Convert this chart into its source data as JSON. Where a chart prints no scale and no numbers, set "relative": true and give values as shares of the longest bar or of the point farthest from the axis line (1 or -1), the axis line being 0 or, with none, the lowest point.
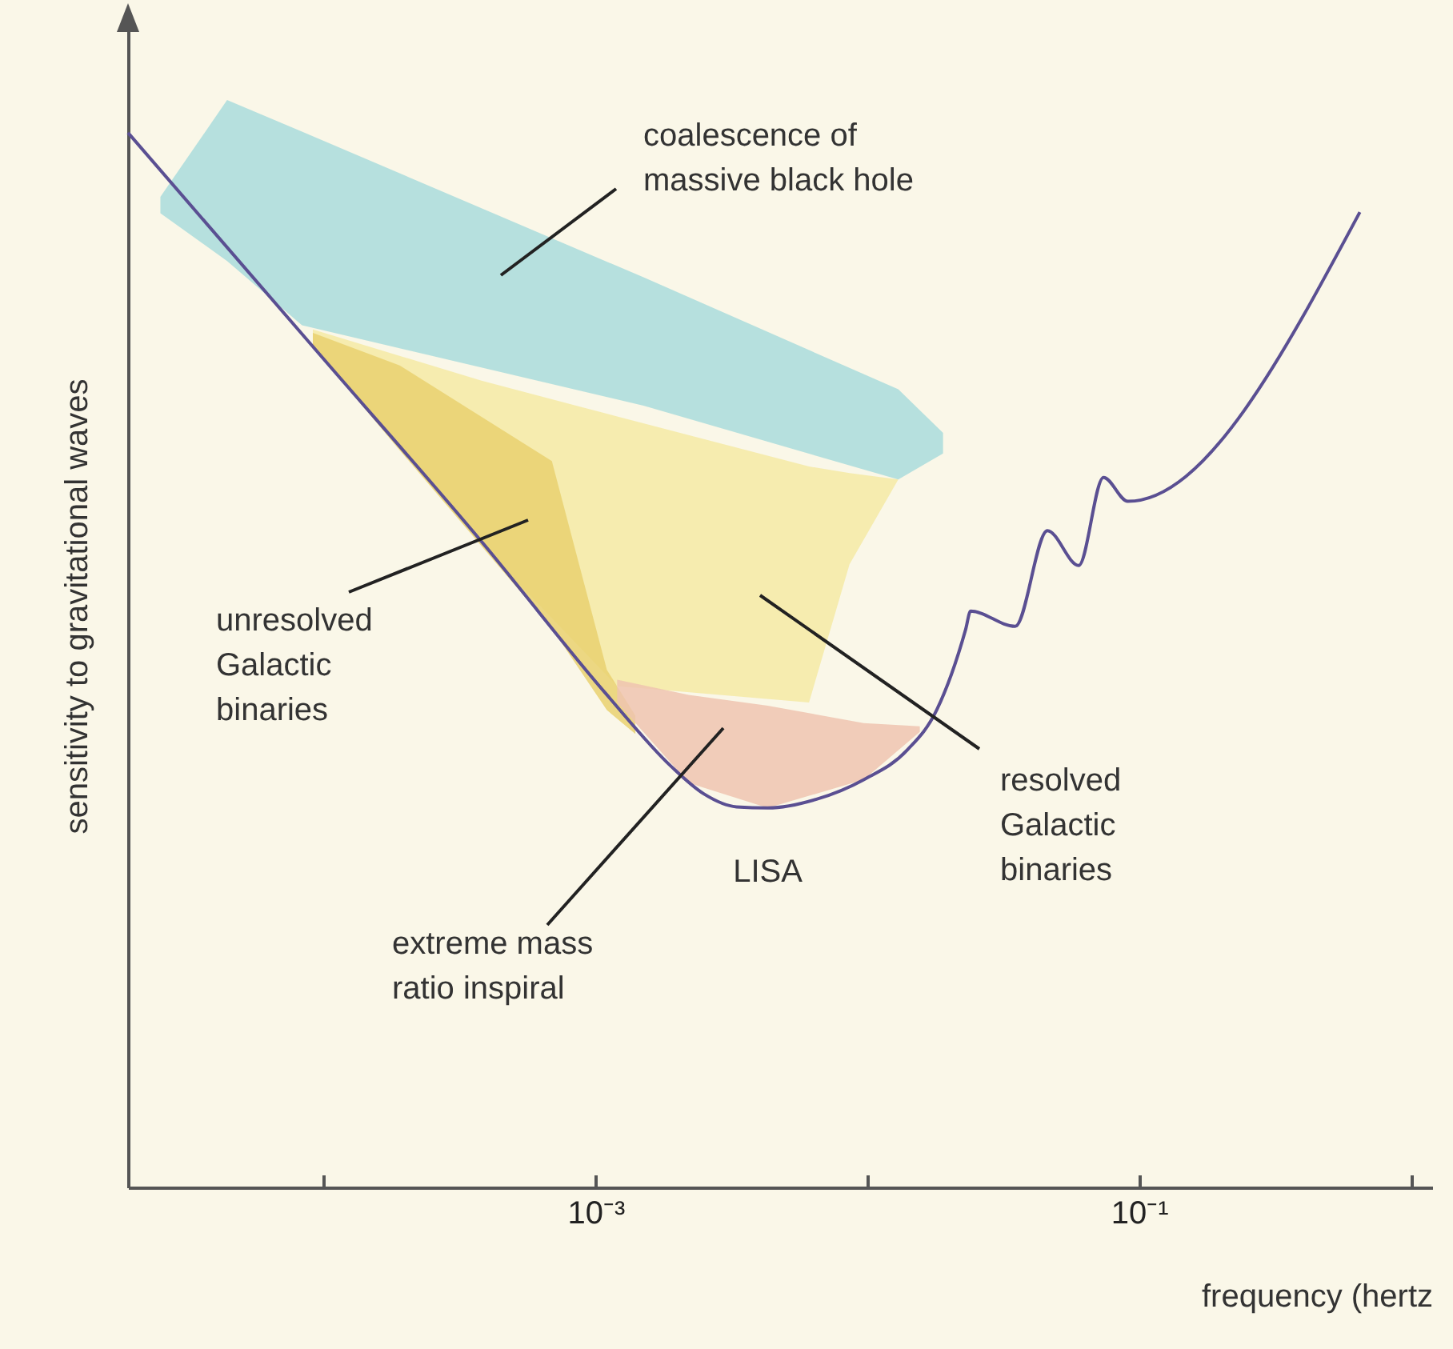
{
  "chart_data": {
    "type": "area",
    "relative": true,
    "log": "x",
    "ylabel": "sensitivity to gravitational waves",
    "xlabel": "frequency (hertz",
    "xlim": [
      1.9e-05,
      1.2
    ],
    "xticks": [
      {
        "value": 0.0001,
        "label": null
      },
      {
        "value": 0.001,
        "label": "10⁻³"
      },
      {
        "value": 0.01,
        "label": null
      },
      {
        "value": 0.1,
        "label": "10⁻¹"
      },
      {
        "value": 1,
        "label": null
      }
    ],
    "series": [
      {
        "color": "#a9dcdc",
        "x": [
          2.5e-05,
          4.4e-05,
          8.3e-05,
          0.0015,
          0.013,
          0.019,
          0.019,
          0.013,
          0.0015,
          8.3e-05,
          4.4e-05,
          2.5e-05
        ],
        "values": [
          0.911,
          1.0,
          0.971,
          0.837,
          0.734,
          0.694,
          0.675,
          0.651,
          0.719,
          0.793,
          0.852,
          0.896
        ]
      },
      {
        "color": "#f4eaa4",
        "x": [
          9.1e-05,
          0.00038,
          0.0012,
          0.0061,
          0.0086,
          0.013,
          0.0086,
          0.0061,
          0.0012,
          0.00038,
          9.1e-05
        ],
        "values": [
          0.789,
          0.742,
          0.709,
          0.663,
          0.657,
          0.651,
          0.573,
          0.446,
          0.461,
          0.591,
          0.773
        ]
      },
      {
        "color": "#e9d170",
        "x": [
          9.1e-05,
          0.00019,
          0.00069,
          0.0011,
          0.0014,
          0.0014,
          0.0011,
          0.00069,
          0.00019,
          9.1e-05
        ],
        "values": [
          0.786,
          0.756,
          0.668,
          0.476,
          0.434,
          0.417,
          0.439,
          0.514,
          0.678,
          0.773
        ]
      },
      {
        "color": "#eec4b0",
        "x": [
          0.0012,
          0.0022,
          0.0043,
          0.0097,
          0.0156,
          0.0156,
          0.0097,
          0.0043,
          0.0022,
          0.0012
        ],
        "values": [
          0.467,
          0.453,
          0.443,
          0.427,
          0.424,
          0.419,
          0.375,
          0.349,
          0.372,
          0.446
        ]
      },
      {
        "type": "line",
        "name": "LISA",
        "color": "#5a4f92",
        "x": [
          1.9e-05,
          9.8e-05,
          0.00038,
          0.0011,
          0.0019,
          0.0025,
          0.0033,
          0.0043,
          0.0065,
          0.0097,
          0.014,
          0.018,
          0.023,
          0.024,
          0.035,
          0.046,
          0.06,
          0.074,
          0.091,
          0.65
        ],
        "values": [
          0.97,
          0.764,
          0.594,
          0.453,
          0.387,
          0.362,
          0.35,
          0.349,
          0.357,
          0.375,
          0.402,
          0.439,
          0.513,
          0.53,
          0.516,
          0.604,
          0.572,
          0.653,
          0.631,
          0.897
        ]
      }
    ],
    "annotations": [
      "coalescence of\nmassive black hole",
      "unresolved\nGalactic\nbinaries",
      "resolved\nGalactic\nbinaries",
      "extreme mass\nratio inspiral"
    ]
  }
}
